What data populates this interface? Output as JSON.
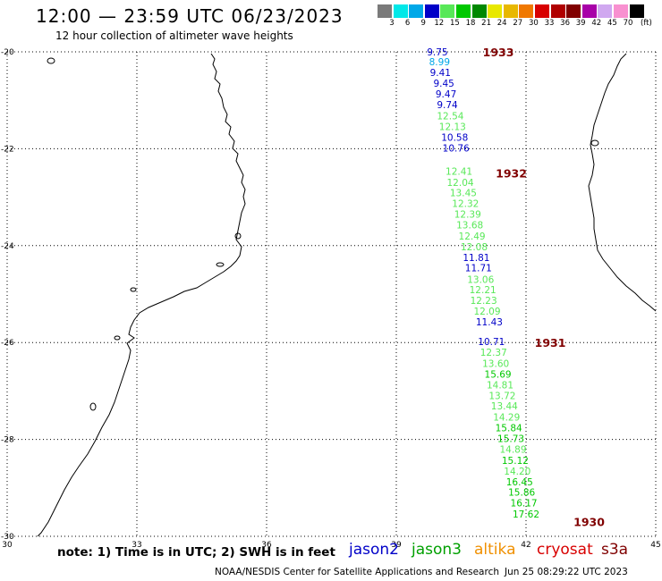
{
  "header": {
    "title": "12:00 — 23:59 UTC 06/23/2023",
    "subtitle": "12 hour collection of altimeter wave heights"
  },
  "legend": {
    "unit": "(ft)",
    "bins": [
      {
        "label": "3",
        "color": "#7a7a7a"
      },
      {
        "label": "6",
        "color": "#00e8e8"
      },
      {
        "label": "9",
        "color": "#00a8e8"
      },
      {
        "label": "12",
        "color": "#0000c8"
      },
      {
        "label": "15",
        "color": "#58e858"
      },
      {
        "label": "18",
        "color": "#00c800"
      },
      {
        "label": "21",
        "color": "#008800"
      },
      {
        "label": "24",
        "color": "#e8e800"
      },
      {
        "label": "27",
        "color": "#e8b800"
      },
      {
        "label": "30",
        "color": "#f07800"
      },
      {
        "label": "33",
        "color": "#d80000"
      },
      {
        "label": "36",
        "color": "#b00000"
      },
      {
        "label": "39",
        "color": "#800000"
      },
      {
        "label": "42",
        "color": "#a800a8"
      },
      {
        "label": "45",
        "color": "#d0a8f0"
      },
      {
        "label": "70",
        "color": "#f890d0"
      },
      {
        "label": "",
        "color": "#000000"
      }
    ]
  },
  "map": {
    "lon_range": [
      30,
      45
    ],
    "lat_range": [
      -30,
      -20
    ],
    "x_ticks": [
      {
        "label": "30",
        "lon": 30
      },
      {
        "label": "33",
        "lon": 33
      },
      {
        "label": "36",
        "lon": 36
      },
      {
        "label": "39",
        "lon": 39
      },
      {
        "label": "42",
        "lon": 42
      },
      {
        "label": "45",
        "lon": 45
      }
    ],
    "y_ticks": [
      {
        "label": "-20",
        "lat": -20
      },
      {
        "label": "-22",
        "lat": -22
      },
      {
        "label": "-24",
        "lat": -24
      },
      {
        "label": "-26",
        "lat": -26
      },
      {
        "label": "-28",
        "lat": -28
      },
      {
        "label": "-30",
        "lat": -30
      }
    ],
    "grid": "dotted",
    "time_labels": [
      {
        "text": "1933",
        "lon": 41.0,
        "lat": -20.0,
        "color": "#800000"
      },
      {
        "text": "1932",
        "lon": 41.3,
        "lat": -22.5,
        "color": "#800000"
      },
      {
        "text": "1931",
        "lon": 42.2,
        "lat": -26.0,
        "color": "#800000"
      },
      {
        "text": "1930",
        "lon": 43.1,
        "lat": -29.7,
        "color": "#800000"
      }
    ],
    "observations": [
      {
        "text": "9.75",
        "lon": 39.95,
        "lat": -20.0,
        "color": "#0000c8"
      },
      {
        "text": "8.99",
        "lon": 40.0,
        "lat": -20.2,
        "color": "#00a8e8"
      },
      {
        "text": "9.41",
        "lon": 40.02,
        "lat": -20.42,
        "color": "#0000c8"
      },
      {
        "text": "9.45",
        "lon": 40.1,
        "lat": -20.65,
        "color": "#0000c8"
      },
      {
        "text": "9.47",
        "lon": 40.15,
        "lat": -20.87,
        "color": "#0000c8"
      },
      {
        "text": "9.74",
        "lon": 40.18,
        "lat": -21.09,
        "color": "#0000c8"
      },
      {
        "text": "12.54",
        "lon": 40.25,
        "lat": -21.32,
        "color": "#58e858"
      },
      {
        "text": "12.13",
        "lon": 40.3,
        "lat": -21.54,
        "color": "#58e858"
      },
      {
        "text": "10.58",
        "lon": 40.35,
        "lat": -21.76,
        "color": "#0000c8"
      },
      {
        "text": "10.76",
        "lon": 40.38,
        "lat": -21.98,
        "color": "#0000c8"
      },
      {
        "text": "12.41",
        "lon": 40.45,
        "lat": -22.46,
        "color": "#58e858"
      },
      {
        "text": "12.04",
        "lon": 40.48,
        "lat": -22.69,
        "color": "#58e858"
      },
      {
        "text": "13.45",
        "lon": 40.55,
        "lat": -22.91,
        "color": "#58e858"
      },
      {
        "text": "12.32",
        "lon": 40.6,
        "lat": -23.13,
        "color": "#58e858"
      },
      {
        "text": "12.39",
        "lon": 40.65,
        "lat": -23.35,
        "color": "#58e858"
      },
      {
        "text": "13.68",
        "lon": 40.7,
        "lat": -23.57,
        "color": "#58e858"
      },
      {
        "text": "12.49",
        "lon": 40.75,
        "lat": -23.8,
        "color": "#58e858"
      },
      {
        "text": "12.08",
        "lon": 40.8,
        "lat": -24.02,
        "color": "#58e858"
      },
      {
        "text": "11.81",
        "lon": 40.85,
        "lat": -24.24,
        "color": "#0000c8"
      },
      {
        "text": "11.71",
        "lon": 40.9,
        "lat": -24.46,
        "color": "#0000c8"
      },
      {
        "text": "13.06",
        "lon": 40.95,
        "lat": -24.7,
        "color": "#58e858"
      },
      {
        "text": "12.21",
        "lon": 41.0,
        "lat": -24.91,
        "color": "#58e858"
      },
      {
        "text": "12.23",
        "lon": 41.02,
        "lat": -25.13,
        "color": "#58e858"
      },
      {
        "text": "12.09",
        "lon": 41.1,
        "lat": -25.35,
        "color": "#58e858"
      },
      {
        "text": "11.43",
        "lon": 41.15,
        "lat": -25.57,
        "color": "#0000c8"
      },
      {
        "text": "10.71",
        "lon": 41.2,
        "lat": -25.98,
        "color": "#0000c8"
      },
      {
        "text": "12.37",
        "lon": 41.25,
        "lat": -26.2,
        "color": "#58e858"
      },
      {
        "text": "13.60",
        "lon": 41.3,
        "lat": -26.43,
        "color": "#58e858"
      },
      {
        "text": "15.69",
        "lon": 41.35,
        "lat": -26.65,
        "color": "#00c800"
      },
      {
        "text": "14.81",
        "lon": 41.4,
        "lat": -26.87,
        "color": "#58e858"
      },
      {
        "text": "13.72",
        "lon": 41.45,
        "lat": -27.09,
        "color": "#58e858"
      },
      {
        "text": "13.44",
        "lon": 41.5,
        "lat": -27.31,
        "color": "#58e858"
      },
      {
        "text": "14.29",
        "lon": 41.55,
        "lat": -27.54,
        "color": "#58e858"
      },
      {
        "text": "15.84",
        "lon": 41.6,
        "lat": -27.76,
        "color": "#00c800"
      },
      {
        "text": "15.73",
        "lon": 41.65,
        "lat": -27.98,
        "color": "#00c800"
      },
      {
        "text": "14.89",
        "lon": 41.7,
        "lat": -28.2,
        "color": "#58e858"
      },
      {
        "text": "15.12",
        "lon": 41.75,
        "lat": -28.43,
        "color": "#00c800"
      },
      {
        "text": "14.20",
        "lon": 41.8,
        "lat": -28.65,
        "color": "#58e858"
      },
      {
        "text": "16.45",
        "lon": 41.85,
        "lat": -28.87,
        "color": "#00c800"
      },
      {
        "text": "15.86",
        "lon": 41.9,
        "lat": -29.09,
        "color": "#00c800"
      },
      {
        "text": "16.17",
        "lon": 41.95,
        "lat": -29.31,
        "color": "#00c800"
      },
      {
        "text": "17.62",
        "lon": 42.0,
        "lat": -29.54,
        "color": "#00c800"
      }
    ]
  },
  "footer": {
    "note": "note: 1) Time is in UTC; 2) SWH is in feet",
    "satellites": [
      {
        "name": "jason2",
        "color": "#0000c8"
      },
      {
        "name": "jason3",
        "color": "#00a000"
      },
      {
        "name": "altika",
        "color": "#f09000"
      },
      {
        "name": "cryosat",
        "color": "#d80000"
      },
      {
        "name": "s3a",
        "color": "#800000"
      }
    ],
    "credit": "NOAA/NESDIS Center for Satellite Applications and Research",
    "timestamp": "Jun 25 08:29:22 UTC 2023"
  }
}
